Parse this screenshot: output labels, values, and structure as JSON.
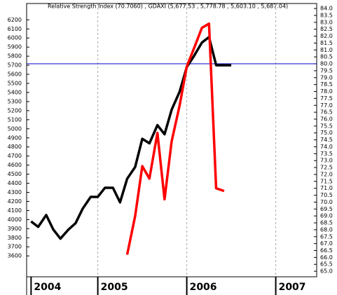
{
  "chart_data": {
    "type": "line",
    "title": "Relative Strength Index (70.7060) , GDAXI (5,677.53 , 5,778.78 , 5,603.10 , 5,687.04)",
    "series": [
      {
        "color": "#000000",
        "x": [
          2004.25,
          2004.33,
          2004.42,
          2004.5,
          2004.58,
          2004.67,
          2004.75,
          2004.83,
          2004.92,
          2005,
          2005.08,
          2005.17,
          2005.25,
          2005.33,
          2005.42,
          2005.5,
          2005.58,
          2005.67,
          2005.75,
          2005.83,
          2005.92,
          2006,
          2006.08,
          2006.17,
          2006.25,
          2006.33,
          2006.42,
          2006.5
        ],
        "values": [
          3980,
          3920,
          4050,
          3890,
          3790,
          3890,
          3960,
          4120,
          4250,
          4250,
          4350,
          4350,
          4190,
          4450,
          4580,
          4890,
          4840,
          5040,
          4940,
          5210,
          5410,
          5680,
          5800,
          5950,
          6010,
          5700,
          5700,
          5700
        ]
      },
      {
        "color": "#ff0000",
        "axis": "y2",
        "x": [
          2005.33,
          2005.42,
          2005.5,
          2005.58,
          2005.67,
          2005.75,
          2005.83,
          2005.92,
          2006,
          2006.08,
          2006.17,
          2006.25,
          2006.33,
          2006.42
        ],
        "values": [
          66.2,
          69.0,
          72.6,
          71.7,
          75.0,
          70.2,
          74.4,
          77.0,
          79.8,
          81.1,
          82.6,
          82.9,
          71.0,
          70.8
        ]
      }
    ],
    "reference_line": {
      "value": 80,
      "axis": "y2",
      "color": "#0000cc"
    },
    "xlim": [
      2004.2,
      2007.46
    ],
    "xticks": [
      {
        "value": 2004.25,
        "label": "2004"
      },
      2005,
      2006,
      2007
    ],
    "ylim": [
      3370,
      6380
    ],
    "yticks": [
      3600,
      3700,
      3800,
      3900,
      4000,
      4100,
      4200,
      4300,
      4400,
      4500,
      4600,
      4700,
      4800,
      4900,
      5000,
      5100,
      5200,
      5300,
      5400,
      5500,
      5600,
      5700,
      5800,
      5900,
      6000,
      6100,
      6200
    ],
    "y2lim": [
      64.6,
      84.36
    ],
    "y2ticks": [
      {
        "value": 65,
        "label": "65.0"
      },
      65.5,
      {
        "value": 66,
        "label": "66.0"
      },
      66.5,
      {
        "value": 67,
        "label": "67.0"
      },
      67.5,
      {
        "value": 68,
        "label": "68.0"
      },
      68.5,
      {
        "value": 69,
        "label": "69.0"
      },
      69.5,
      {
        "value": 70,
        "label": "70.0"
      },
      70.5,
      {
        "value": 71,
        "label": "71.0"
      },
      71.5,
      {
        "value": 72,
        "label": "72.0"
      },
      72.5,
      {
        "value": 73,
        "label": "73.0"
      },
      73.5,
      {
        "value": 74,
        "label": "74.0"
      },
      74.5,
      {
        "value": 75,
        "label": "75.0"
      },
      75.5,
      {
        "value": 76,
        "label": "76.0"
      },
      76.5,
      {
        "value": 77,
        "label": "77.0"
      },
      77.5,
      {
        "value": 78,
        "label": "78.0"
      },
      78.5,
      {
        "value": 79,
        "label": "79.0"
      },
      79.5,
      {
        "value": 80,
        "label": "80.0"
      },
      80.5,
      {
        "value": 81,
        "label": "81.0"
      },
      81.5,
      {
        "value": 82,
        "label": "82.0"
      },
      82.5,
      {
        "value": 83,
        "label": "83.0"
      },
      83.5,
      {
        "value": 84,
        "label": "84.0"
      }
    ],
    "grid": true
  }
}
